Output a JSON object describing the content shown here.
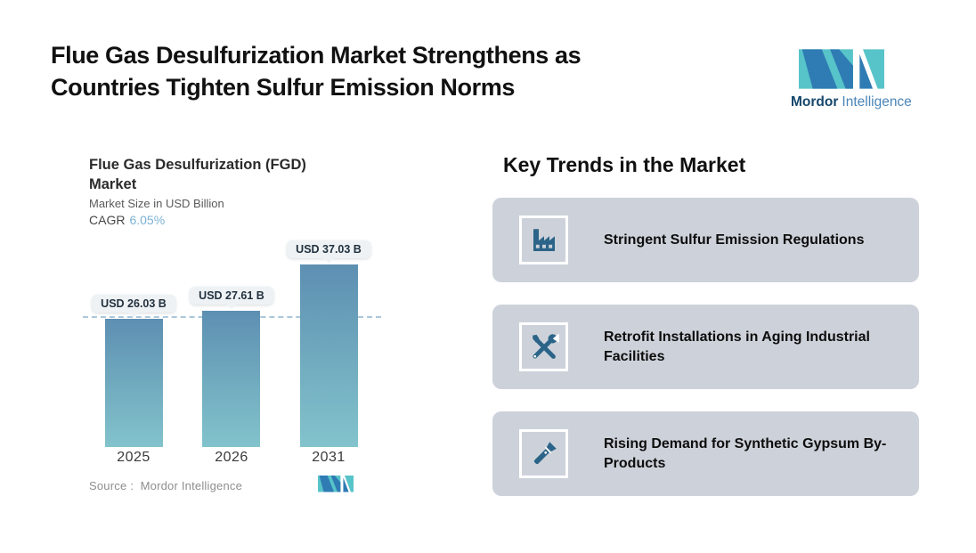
{
  "header": {
    "title_line1": "Flue Gas Desulfurization Market Strengthens as",
    "title_line2": "Countries Tighten Sulfur Emission Norms"
  },
  "brand": {
    "name_primary": "Mordor",
    "name_secondary": "Intelligence",
    "teal": "#57c4c9",
    "blue": "#2f7cb4"
  },
  "chart": {
    "title_line1": "Flue Gas Desulfurization (FGD)",
    "title_line2": "Market",
    "subtitle": "Market Size in USD Billion",
    "cagr_label": "CAGR",
    "cagr_value": "6.05%",
    "source_label": "Source :",
    "source_value": "Mordor Intelligence"
  },
  "chart_data": {
    "type": "bar",
    "title": "Flue Gas Desulfurization (FGD) Market",
    "ylabel": "Market Size in USD Billion",
    "categories": [
      "2025",
      "2026",
      "2031"
    ],
    "values": [
      26.03,
      27.61,
      37.03
    ],
    "bar_labels": [
      "USD 26.03 B",
      "USD 27.61 B",
      "USD 37.03 B"
    ],
    "cagr_pct": 6.05,
    "reference_line_value": 26.03,
    "ylim": [
      0,
      40
    ],
    "grid": false,
    "colors": {
      "bar_top": "#5d8fb2",
      "bar_bottom": "#82c3cc",
      "dashed_line": "#abc8da",
      "cagr_accent": "#7cb2d4",
      "label_pill_bg": "#eef2f4"
    }
  },
  "trends": {
    "heading": "Key Trends in the Market",
    "cards": [
      {
        "icon": "factory-icon",
        "label": "Stringent Sulfur Emission Regulations"
      },
      {
        "icon": "tools-icon",
        "label": "Retrofit Installations in Aging Industrial Facilities"
      },
      {
        "icon": "flashlight-icon",
        "label": "Rising Demand for Synthetic Gypsum By-Products"
      }
    ],
    "colors": {
      "card_bg": "#cdd2da",
      "icon_blue": "#2b6488"
    }
  }
}
